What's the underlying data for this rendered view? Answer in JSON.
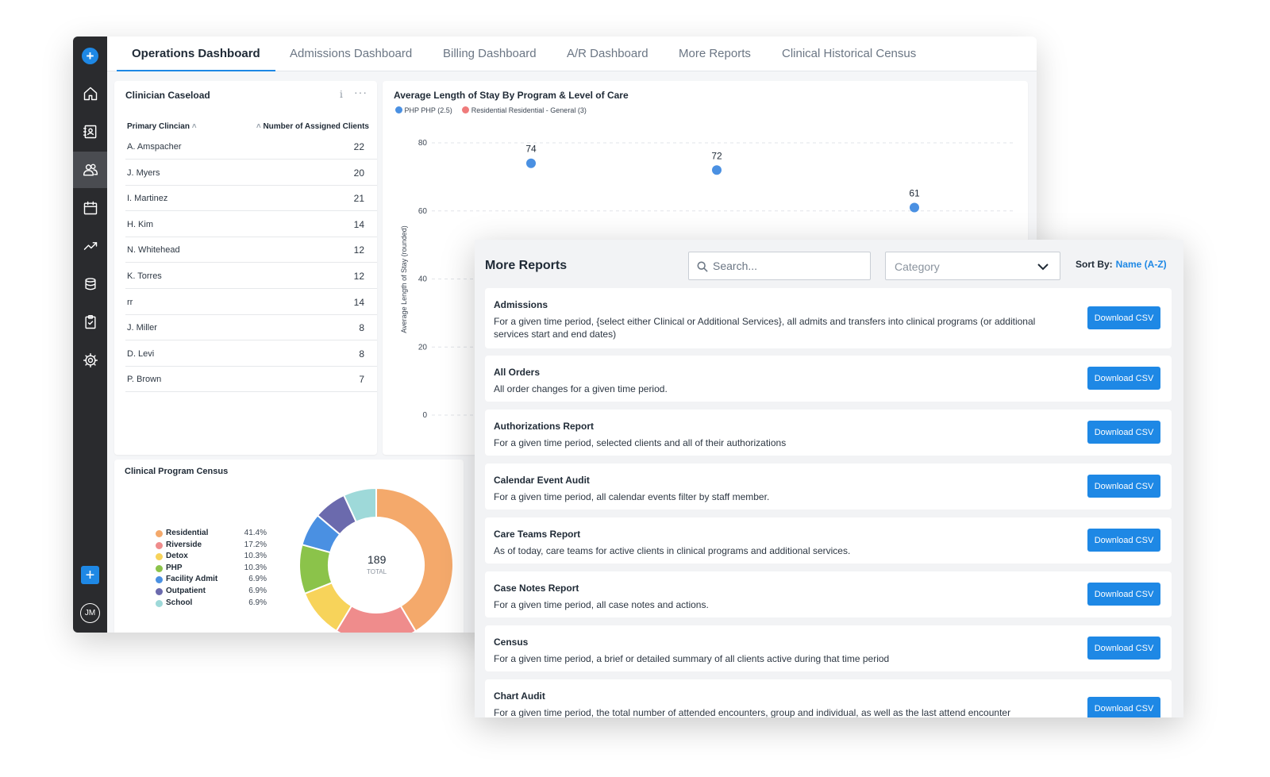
{
  "tabs": [
    {
      "label": "Operations Dashboard"
    },
    {
      "label": "Admissions Dashboard"
    },
    {
      "label": "Billing Dashboard"
    },
    {
      "label": "A/R Dashboard"
    },
    {
      "label": "More Reports"
    },
    {
      "label": "Clinical Historical Census"
    }
  ],
  "sidebar": {
    "items": [
      "home-icon",
      "contacts-book-icon",
      "users-icon",
      "calendar-icon",
      "trending-icon",
      "stack-icon",
      "clipboard-check-icon",
      "gear-icon"
    ],
    "active": "users-icon",
    "add_label": "+",
    "avatar_initials": "JM"
  },
  "caseload": {
    "title": "Clinician Caseload",
    "col_left": "Primary Clincian",
    "col_right": "Number of Assigned Clients",
    "rows": [
      {
        "name": "A. Amspacher",
        "value": "22"
      },
      {
        "name": "J. Myers",
        "value": "20"
      },
      {
        "name": "I. Martinez",
        "value": "21"
      },
      {
        "name": "H. Kim",
        "value": "14"
      },
      {
        "name": "N. Whitehead",
        "value": "12"
      },
      {
        "name": "K. Torres",
        "value": "12"
      },
      {
        "name": "rr",
        "value": "14"
      },
      {
        "name": "J. Miller",
        "value": "8"
      },
      {
        "name": "D. Levi",
        "value": "8"
      },
      {
        "name": "P. Brown",
        "value": "7"
      }
    ]
  },
  "census": {
    "title": "Clinical Program Census",
    "total_value": "189",
    "total_label": "TOTAL",
    "legend": [
      {
        "label": "Residential",
        "pct": "41.4%",
        "value": 41.4,
        "color": "#f4a96b"
      },
      {
        "label": "Riverside",
        "pct": "17.2%",
        "value": 17.2,
        "color": "#ef8c8c"
      },
      {
        "label": "Detox",
        "pct": "10.3%",
        "value": 10.3,
        "color": "#f7d35a"
      },
      {
        "label": "PHP",
        "pct": "10.3%",
        "value": 10.3,
        "color": "#8bc34a"
      },
      {
        "label": "Facility Admit",
        "pct": "6.9%",
        "value": 6.9,
        "color": "#4a90e2"
      },
      {
        "label": "Outpatient",
        "pct": "6.9%",
        "value": 6.9,
        "color": "#6b6aad"
      },
      {
        "label": "School",
        "pct": "6.9%",
        "value": 6.9,
        "color": "#9ed9d9"
      }
    ]
  },
  "chart_data": {
    "type": "scatter",
    "title": "Average Length of Stay By Program & Level of Care",
    "ylabel": "Average Length of Stay (rounded)",
    "ylim": [
      0,
      80
    ],
    "yticks": [
      0,
      20,
      40,
      60,
      80
    ],
    "grid": true,
    "legend_position": "top-left",
    "series": [
      {
        "name": "PHP PHP (2.5)",
        "color": "#4a90e2",
        "points": [
          {
            "x": 1,
            "y": 74,
            "label": "74"
          },
          {
            "x": 2,
            "y": 72,
            "label": "72"
          },
          {
            "x": 3,
            "y": 61,
            "label": "61"
          }
        ]
      },
      {
        "name": "Residential Residential - General (3)",
        "color": "#ef7b7b",
        "points": []
      }
    ]
  },
  "reports": {
    "title": "More Reports",
    "search_placeholder": "Search...",
    "category_value": "Category",
    "sort_label": "Sort By:",
    "sort_value": "Name (A-Z)",
    "download_label": "Download CSV",
    "items": [
      {
        "title": "Admissions",
        "desc": "For a given time period, {select either Clinical or Additional Services}, all admits and transfers into clinical programs (or additional services start and end dates)"
      },
      {
        "title": "All Orders",
        "desc": "All order changes for a given time period."
      },
      {
        "title": "Authorizations Report",
        "desc": "For a given time period, selected clients and all of their authorizations"
      },
      {
        "title": "Calendar Event Audit",
        "desc": "For a given time period, all calendar events filter by staff member."
      },
      {
        "title": "Care Teams Report",
        "desc": "As of today, care teams for active clients in clinical programs and additional services."
      },
      {
        "title": "Case Notes Report",
        "desc": "For a given time period, all case notes and actions."
      },
      {
        "title": "Census",
        "desc": "For a given time period, a brief or detailed summary of all clients active during that time period"
      },
      {
        "title": "Chart Audit",
        "desc": "For a given time period, the total number of attended encounters, group and individual, as well as the last attend encounter"
      }
    ]
  }
}
